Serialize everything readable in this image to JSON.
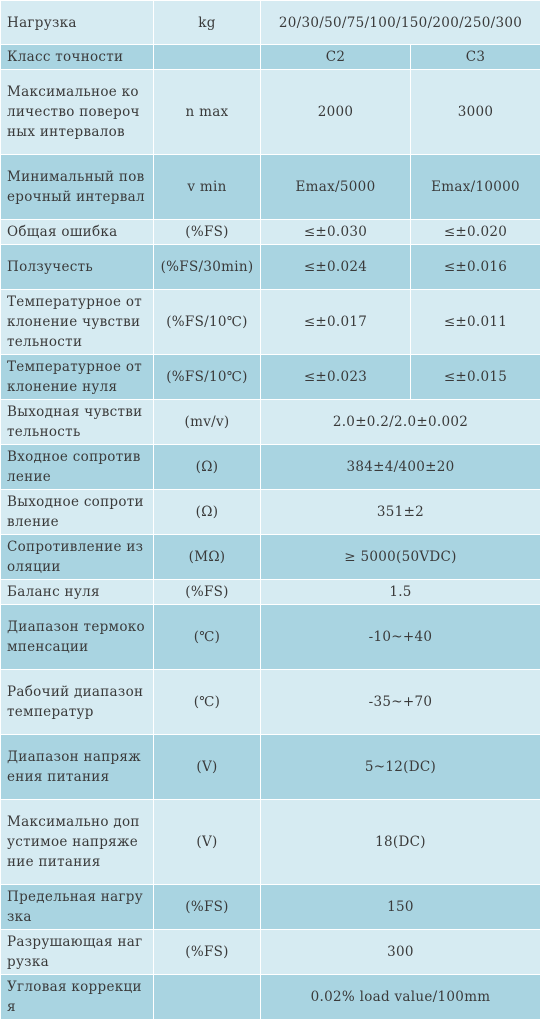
{
  "rows": [
    {
      "name": "Нагрузка",
      "unit": "kg",
      "values": [
        "20/30/50/75/100/150/200/250/300"
      ]
    },
    {
      "name": "Класс точности",
      "unit": "",
      "values": [
        "C2",
        "C3"
      ]
    },
    {
      "name": "Максимальное количество поверочных интервалов",
      "unit": "n max",
      "values": [
        "2000",
        "3000"
      ]
    },
    {
      "name": "Минимальный поверочный интервал",
      "unit": "v min",
      "values": [
        "Emax/5000",
        "Emax/10000"
      ]
    },
    {
      "name": "Общая ошибка",
      "unit": "(%FS)",
      "values": [
        "≤±0.030",
        "≤±0.020"
      ]
    },
    {
      "name": "Ползучесть",
      "unit": "(%FS/30min)",
      "values": [
        "≤±0.024",
        "≤±0.016"
      ]
    },
    {
      "name": "Температурное отклонение чувствительности",
      "unit": "(%FS/10℃)",
      "values": [
        "≤±0.017",
        "≤±0.011"
      ]
    },
    {
      "name": "Температурное отклонение нуля",
      "unit": "(%FS/10℃)",
      "values": [
        "≤±0.023",
        "≤±0.015"
      ]
    },
    {
      "name": "Выходная чувствительность",
      "unit": "(mv/v)",
      "values": [
        "2.0±0.2/2.0±0.002"
      ]
    },
    {
      "name": "Входное сопротивление",
      "unit": "(Ω)",
      "values": [
        "384±4/400±20"
      ]
    },
    {
      "name": "Выходное сопротивление",
      "unit": "(Ω)",
      "values": [
        "351±2"
      ]
    },
    {
      "name": "Сопротивление изоляции",
      "unit": "(MΩ)",
      "values": [
        "≥ 5000(50VDC)"
      ]
    },
    {
      "name": "Баланс нуля",
      "unit": "(%FS)",
      "values": [
        "1.5"
      ]
    },
    {
      "name": "Диапазон термокомпенсации",
      "unit": "(℃)",
      "values": [
        "-10~+40"
      ]
    },
    {
      "name": "Рабочий диапазон температур",
      "unit": "(℃)",
      "values": [
        "-35~+70"
      ]
    },
    {
      "name": "Диапазон напряжения питания",
      "unit": "(V)",
      "values": [
        "5~12(DC)"
      ]
    },
    {
      "name": "Максимально допустимое напряжение питания",
      "unit": "(V)",
      "values": [
        "18(DC)"
      ]
    },
    {
      "name": "Предельная нагрузка",
      "unit": "(%FS)",
      "values": [
        "150"
      ]
    },
    {
      "name": "Разрушающая нагрузка",
      "unit": "(%FS)",
      "values": [
        "300"
      ]
    },
    {
      "name": "Угловая коррекция",
      "unit": "",
      "values": [
        "0.02% load value/100mm"
      ]
    }
  ]
}
